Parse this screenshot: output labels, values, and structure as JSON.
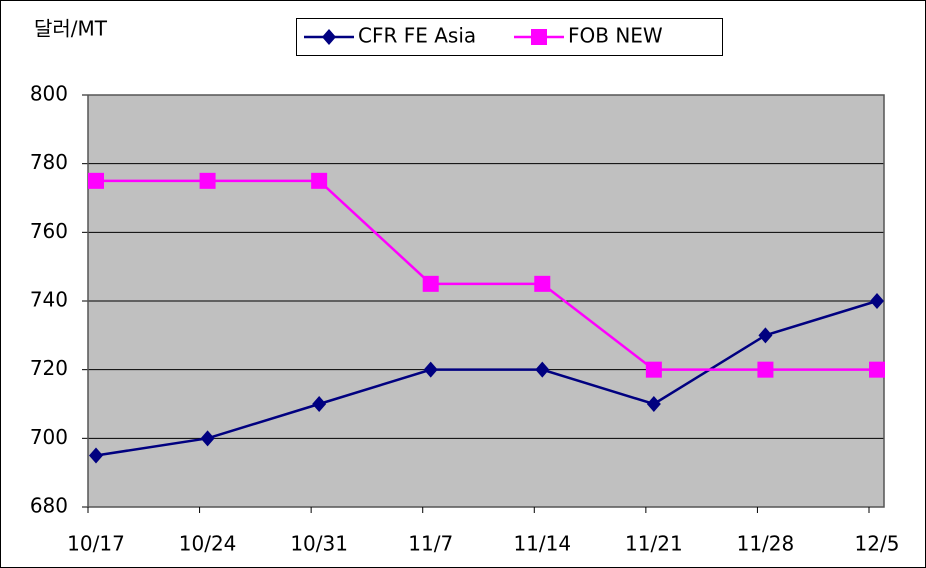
{
  "chart_data": {
    "type": "line",
    "y_axis_label": "달러/MT",
    "categories": [
      "10/17",
      "10/24",
      "10/31",
      "11/7",
      "11/14",
      "11/21",
      "11/28",
      "12/5"
    ],
    "series": [
      {
        "name": "CFR FE Asia",
        "color": "#000080",
        "marker": "diamond",
        "values": [
          695,
          700,
          710,
          720,
          720,
          710,
          730,
          740
        ]
      },
      {
        "name": "FOB NEW",
        "color": "#ff00ff",
        "marker": "square",
        "values": [
          775,
          775,
          775,
          745,
          745,
          720,
          720,
          720
        ]
      }
    ],
    "ylim": [
      680,
      800
    ],
    "yticks": [
      680,
      700,
      720,
      740,
      760,
      780,
      800
    ],
    "grid": true,
    "plot_background": "#c0c0c0"
  }
}
